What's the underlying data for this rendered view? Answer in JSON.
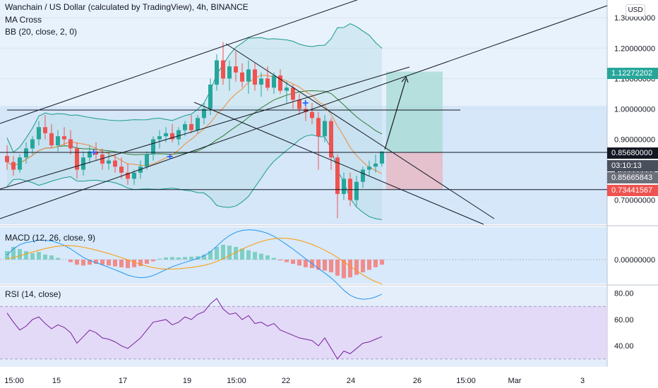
{
  "header": {
    "title": "Wanchain / US Dollar (calculated by TradingView), 4h, BINANCE",
    "ind1": "MA Cross",
    "ind2": "BB (20, close, 2, 0)"
  },
  "currency_button": "USD",
  "macd_label": "MACD (12, 26, close, 9)",
  "rsi_label": "RSI (14, close)",
  "price_badges": {
    "target": "1.12272202",
    "level": "0.85680000",
    "countdown": "03:10:13",
    "last": "0.85665843",
    "stop": "0.73441567",
    "partial": "0"
  },
  "colors": {
    "up": "#26a69a",
    "down": "#ef5350",
    "bg_blue": "#cfe4f8",
    "bb": "#1a9a8a",
    "ma_fast": "#f08a3c",
    "ma_slow": "#2e7d32",
    "macd": "#2196f3",
    "signal": "#ff9800",
    "rsi": "#7b1fa2",
    "rsi_band": "#e1d5f5",
    "target_zone": "#a5d9d3",
    "stop_zone": "#e8b4bd"
  },
  "chart_data": {
    "type": "candlestick",
    "price_axis": {
      "ticks": [
        "1.30000000",
        "1.20000000",
        "1.10000000",
        "1.00000000",
        "0.90000000",
        "0.80000000",
        "0.70000000"
      ],
      "ylim": [
        0.62,
        1.34
      ]
    },
    "macd_axis": {
      "ticks": [
        "0.00000000"
      ]
    },
    "rsi_axis": {
      "ticks": [
        "80.00",
        "60.00",
        "40.00"
      ],
      "ylim": [
        24,
        82
      ],
      "band": [
        30,
        70
      ]
    },
    "x_ticks": [
      "15:00",
      "15",
      "17",
      "19",
      "15:00",
      "22",
      "24",
      "26",
      "15:00",
      "Mar",
      "3"
    ],
    "ohlc": [
      [
        0.845,
        0.88,
        0.8,
        0.825
      ],
      [
        0.825,
        0.845,
        0.78,
        0.8
      ],
      [
        0.8,
        0.85,
        0.79,
        0.84
      ],
      [
        0.84,
        0.89,
        0.82,
        0.87
      ],
      [
        0.87,
        0.91,
        0.85,
        0.9
      ],
      [
        0.9,
        0.96,
        0.88,
        0.94
      ],
      [
        0.94,
        0.98,
        0.9,
        0.92
      ],
      [
        0.92,
        0.95,
        0.87,
        0.88
      ],
      [
        0.88,
        0.93,
        0.86,
        0.91
      ],
      [
        0.91,
        0.94,
        0.88,
        0.9
      ],
      [
        0.9,
        0.93,
        0.85,
        0.87
      ],
      [
        0.87,
        0.89,
        0.77,
        0.8
      ],
      [
        0.8,
        0.86,
        0.78,
        0.84
      ],
      [
        0.84,
        0.88,
        0.82,
        0.86
      ],
      [
        0.86,
        0.89,
        0.83,
        0.85
      ],
      [
        0.85,
        0.87,
        0.8,
        0.82
      ],
      [
        0.82,
        0.86,
        0.8,
        0.83
      ],
      [
        0.83,
        0.85,
        0.79,
        0.81
      ],
      [
        0.81,
        0.84,
        0.77,
        0.79
      ],
      [
        0.79,
        0.82,
        0.75,
        0.77
      ],
      [
        0.77,
        0.8,
        0.75,
        0.79
      ],
      [
        0.79,
        0.83,
        0.77,
        0.81
      ],
      [
        0.81,
        0.86,
        0.8,
        0.85
      ],
      [
        0.85,
        0.91,
        0.83,
        0.9
      ],
      [
        0.9,
        0.93,
        0.87,
        0.91
      ],
      [
        0.91,
        0.94,
        0.89,
        0.92
      ],
      [
        0.92,
        0.95,
        0.89,
        0.9
      ],
      [
        0.9,
        0.94,
        0.88,
        0.93
      ],
      [
        0.93,
        0.96,
        0.91,
        0.95
      ],
      [
        0.95,
        0.98,
        0.92,
        0.93
      ],
      [
        0.93,
        0.98,
        0.92,
        0.97
      ],
      [
        0.97,
        1.02,
        0.95,
        1.0
      ],
      [
        1.0,
        1.1,
        0.98,
        1.08
      ],
      [
        1.08,
        1.18,
        1.06,
        1.16
      ],
      [
        1.16,
        1.22,
        1.08,
        1.1
      ],
      [
        1.1,
        1.16,
        1.06,
        1.14
      ],
      [
        1.14,
        1.19,
        1.09,
        1.12
      ],
      [
        1.12,
        1.15,
        1.07,
        1.09
      ],
      [
        1.09,
        1.16,
        1.05,
        1.13
      ],
      [
        1.13,
        1.15,
        1.06,
        1.08
      ],
      [
        1.08,
        1.12,
        1.04,
        1.1
      ],
      [
        1.1,
        1.14,
        1.06,
        1.07
      ],
      [
        1.07,
        1.12,
        1.05,
        1.11
      ],
      [
        1.11,
        1.13,
        1.05,
        1.06
      ],
      [
        1.06,
        1.09,
        1.02,
        1.07
      ],
      [
        1.07,
        1.08,
        1.0,
        1.03
      ],
      [
        1.03,
        1.05,
        0.98,
        1.0
      ],
      [
        1.0,
        1.03,
        0.96,
        0.99
      ],
      [
        0.99,
        1.02,
        0.95,
        0.97
      ],
      [
        0.97,
        0.99,
        0.8,
        0.91
      ],
      [
        0.91,
        0.98,
        0.89,
        0.96
      ],
      [
        0.96,
        0.97,
        0.8,
        0.84
      ],
      [
        0.84,
        0.85,
        0.64,
        0.72
      ],
      [
        0.72,
        0.79,
        0.7,
        0.77
      ],
      [
        0.77,
        0.79,
        0.68,
        0.7
      ],
      [
        0.7,
        0.78,
        0.68,
        0.76
      ],
      [
        0.76,
        0.81,
        0.74,
        0.8
      ],
      [
        0.8,
        0.83,
        0.78,
        0.81
      ],
      [
        0.81,
        0.85,
        0.79,
        0.82
      ],
      [
        0.82,
        0.86,
        0.81,
        0.86
      ]
    ],
    "macd_hist": [
      0.02,
      0.03,
      0.025,
      0.02,
      0.015,
      0.018,
      0.012,
      0.01,
      0.004,
      0.0,
      -0.006,
      -0.012,
      -0.014,
      -0.012,
      -0.01,
      -0.012,
      -0.014,
      -0.016,
      -0.018,
      -0.02,
      -0.018,
      -0.015,
      -0.01,
      -0.004,
      0.002,
      0.005,
      0.006,
      0.005,
      0.006,
      0.007,
      0.008,
      0.012,
      0.02,
      0.03,
      0.035,
      0.033,
      0.03,
      0.026,
      0.022,
      0.018,
      0.014,
      0.01,
      0.004,
      -0.002,
      -0.006,
      -0.01,
      -0.014,
      -0.018,
      -0.02,
      -0.024,
      -0.026,
      -0.03,
      -0.038,
      -0.044,
      -0.042,
      -0.036,
      -0.03,
      -0.024,
      -0.018,
      -0.012
    ],
    "rsi": [
      65,
      58,
      52,
      55,
      60,
      62,
      57,
      53,
      56,
      54,
      50,
      42,
      47,
      52,
      50,
      46,
      45,
      43,
      40,
      38,
      42,
      46,
      52,
      58,
      59,
      60,
      56,
      58,
      62,
      60,
      64,
      66,
      72,
      76,
      68,
      64,
      65,
      60,
      63,
      57,
      58,
      55,
      57,
      52,
      50,
      48,
      46,
      45,
      44,
      40,
      46,
      38,
      30,
      36,
      34,
      38,
      42,
      43,
      45,
      47
    ]
  }
}
